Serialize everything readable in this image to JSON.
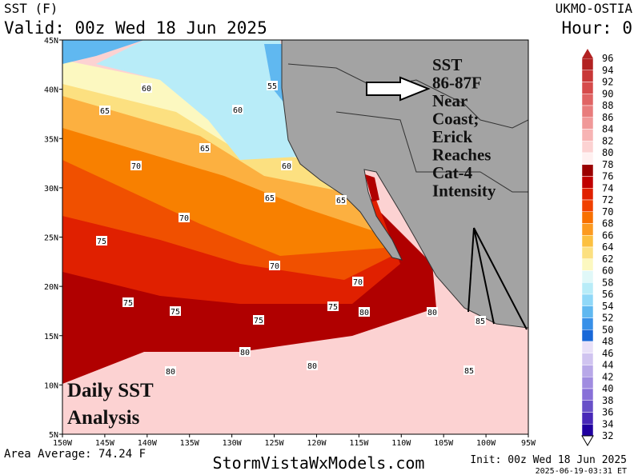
{
  "header": {
    "field": "SST (F)",
    "valid": "Valid: 00z Wed 18 Jun 2025",
    "model": "UKMO-OSTIA",
    "hour": "Hour: 0"
  },
  "map": {
    "lat_labels": [
      "45N",
      "40N",
      "35N",
      "30N",
      "25N",
      "20N",
      "15N",
      "10N",
      "5N"
    ],
    "lon_labels": [
      "150W",
      "145W",
      "140W",
      "135W",
      "130W",
      "125W",
      "120W",
      "115W",
      "110W",
      "105W",
      "100W",
      "95W"
    ],
    "contour_labels": [
      60,
      65,
      60,
      55,
      65,
      60,
      70,
      65,
      65,
      70,
      75,
      70,
      70,
      75,
      75,
      75,
      80,
      80,
      75,
      85,
      80,
      80,
      80,
      85
    ],
    "annotation": [
      "SST",
      "86-87F",
      "Near",
      "Coast;",
      "Erick",
      "Reaches",
      "Cat-4",
      "Intensity"
    ],
    "caption": [
      "Daily SST",
      "Analysis"
    ]
  },
  "colorbar": {
    "ticks": [
      96,
      94,
      92,
      90,
      88,
      86,
      84,
      82,
      80,
      78,
      76,
      74,
      72,
      70,
      68,
      66,
      64,
      62,
      60,
      58,
      56,
      54,
      52,
      50,
      48,
      46,
      44,
      42,
      40,
      38,
      36,
      34,
      32
    ],
    "colors": [
      "#b22222",
      "#c83737",
      "#d64b4b",
      "#e06464",
      "#e87c7c",
      "#f09898",
      "#f7b4b4",
      "#fcd2d2",
      "#fff0f0",
      "#9b0000",
      "#c00000",
      "#e02000",
      "#f04000",
      "#f87000",
      "#fc9a20",
      "#fcc040",
      "#fce080",
      "#fcf8c0",
      "#e0f8f8",
      "#b8ecf8",
      "#90d8f8",
      "#60b8f0",
      "#3890e8",
      "#1868d8",
      "#e8e0f8",
      "#d0c4f0",
      "#b8a8e8",
      "#a08ce0",
      "#8870d8",
      "#6850c8",
      "#4828b8",
      "#2000a0"
    ]
  },
  "footer": {
    "average": "Area Average: 74.24 F",
    "site": "StormVistaWxModels.com",
    "init": "Init: 00z Wed 18 Jun 2025",
    "stamp": "2025-06-19-03:31 ET"
  }
}
